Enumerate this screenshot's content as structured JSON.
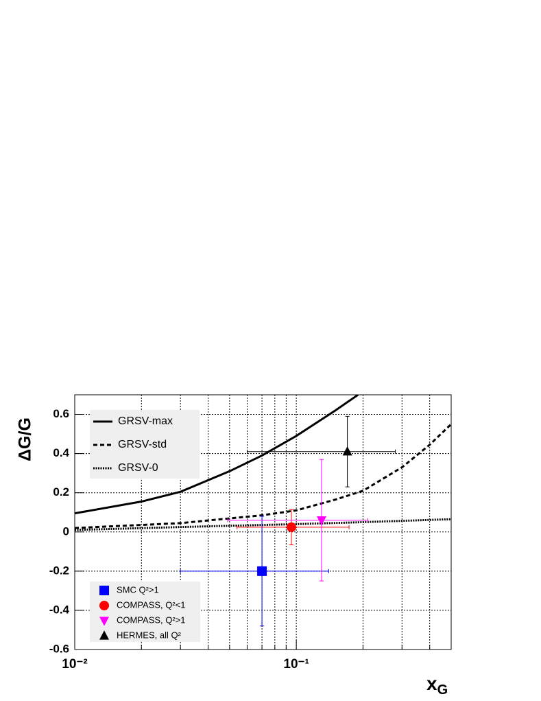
{
  "chart_data": {
    "type": "line",
    "y_label": "ΔG/G",
    "x_label": "x",
    "x_label_sub": "G",
    "xlog": true,
    "grid": true,
    "xlim": [
      0.01,
      0.5
    ],
    "ylim": [
      -0.6,
      0.7
    ],
    "xticks": [
      {
        "value": 0.01,
        "label": "10⁻²"
      },
      {
        "value": 0.1,
        "label": "10⁻¹"
      }
    ],
    "xminorticks": [
      0.02,
      0.03,
      0.04,
      0.05,
      0.06,
      0.07,
      0.08,
      0.09,
      0.2,
      0.3,
      0.4
    ],
    "yticks": [
      -0.6,
      -0.4,
      -0.2,
      0,
      0.2,
      0.4,
      0.6
    ],
    "series": [
      {
        "name": "GRSV-max",
        "color": "#000000",
        "style": "solid",
        "x": [
          0.01,
          0.02,
          0.03,
          0.05,
          0.07,
          0.1,
          0.15,
          0.19
        ],
        "values": [
          0.095,
          0.155,
          0.205,
          0.31,
          0.39,
          0.49,
          0.62,
          0.7
        ]
      },
      {
        "name": "GRSV-std",
        "color": "#000000",
        "style": "dashed",
        "x": [
          0.01,
          0.03,
          0.07,
          0.1,
          0.15,
          0.2,
          0.3,
          0.4,
          0.5
        ],
        "values": [
          0.02,
          0.045,
          0.085,
          0.11,
          0.165,
          0.21,
          0.33,
          0.445,
          0.55
        ]
      },
      {
        "name": "GRSV-0",
        "color": "#000000",
        "style": "dotted",
        "x": [
          0.01,
          0.03,
          0.1,
          0.2,
          0.5
        ],
        "values": [
          0.01,
          0.025,
          0.04,
          0.05,
          0.065
        ]
      }
    ],
    "points": [
      {
        "name": "SMC Q²>1",
        "color": "#0000ff",
        "marker": "square",
        "x": [
          0.07
        ],
        "values": [
          -0.2
        ],
        "yerr": [
          0.28
        ],
        "xlow": [
          0.03
        ],
        "xhigh": [
          0.14
        ]
      },
      {
        "name": "COMPASS, Q²<1",
        "color": "#ff0000",
        "marker": "circle",
        "x": [
          0.095
        ],
        "values": [
          0.024
        ],
        "yerr": [
          0.09
        ],
        "xlow": [
          0.054
        ],
        "xhigh": [
          0.173
        ]
      },
      {
        "name": "COMPASS, Q²>1",
        "color": "#ff00ff",
        "marker": "triangle-down",
        "x": [
          0.13
        ],
        "values": [
          0.06
        ],
        "yerr": [
          0.31
        ],
        "xlow": [
          0.049
        ],
        "xhigh": [
          0.21
        ]
      },
      {
        "name": "HERMES, all Q²",
        "color": "#000000",
        "marker": "triangle-up",
        "x": [
          0.17
        ],
        "values": [
          0.41
        ],
        "yerr": [
          0.18
        ],
        "xlow": [
          0.06
        ],
        "xhigh": [
          0.28
        ]
      }
    ]
  }
}
